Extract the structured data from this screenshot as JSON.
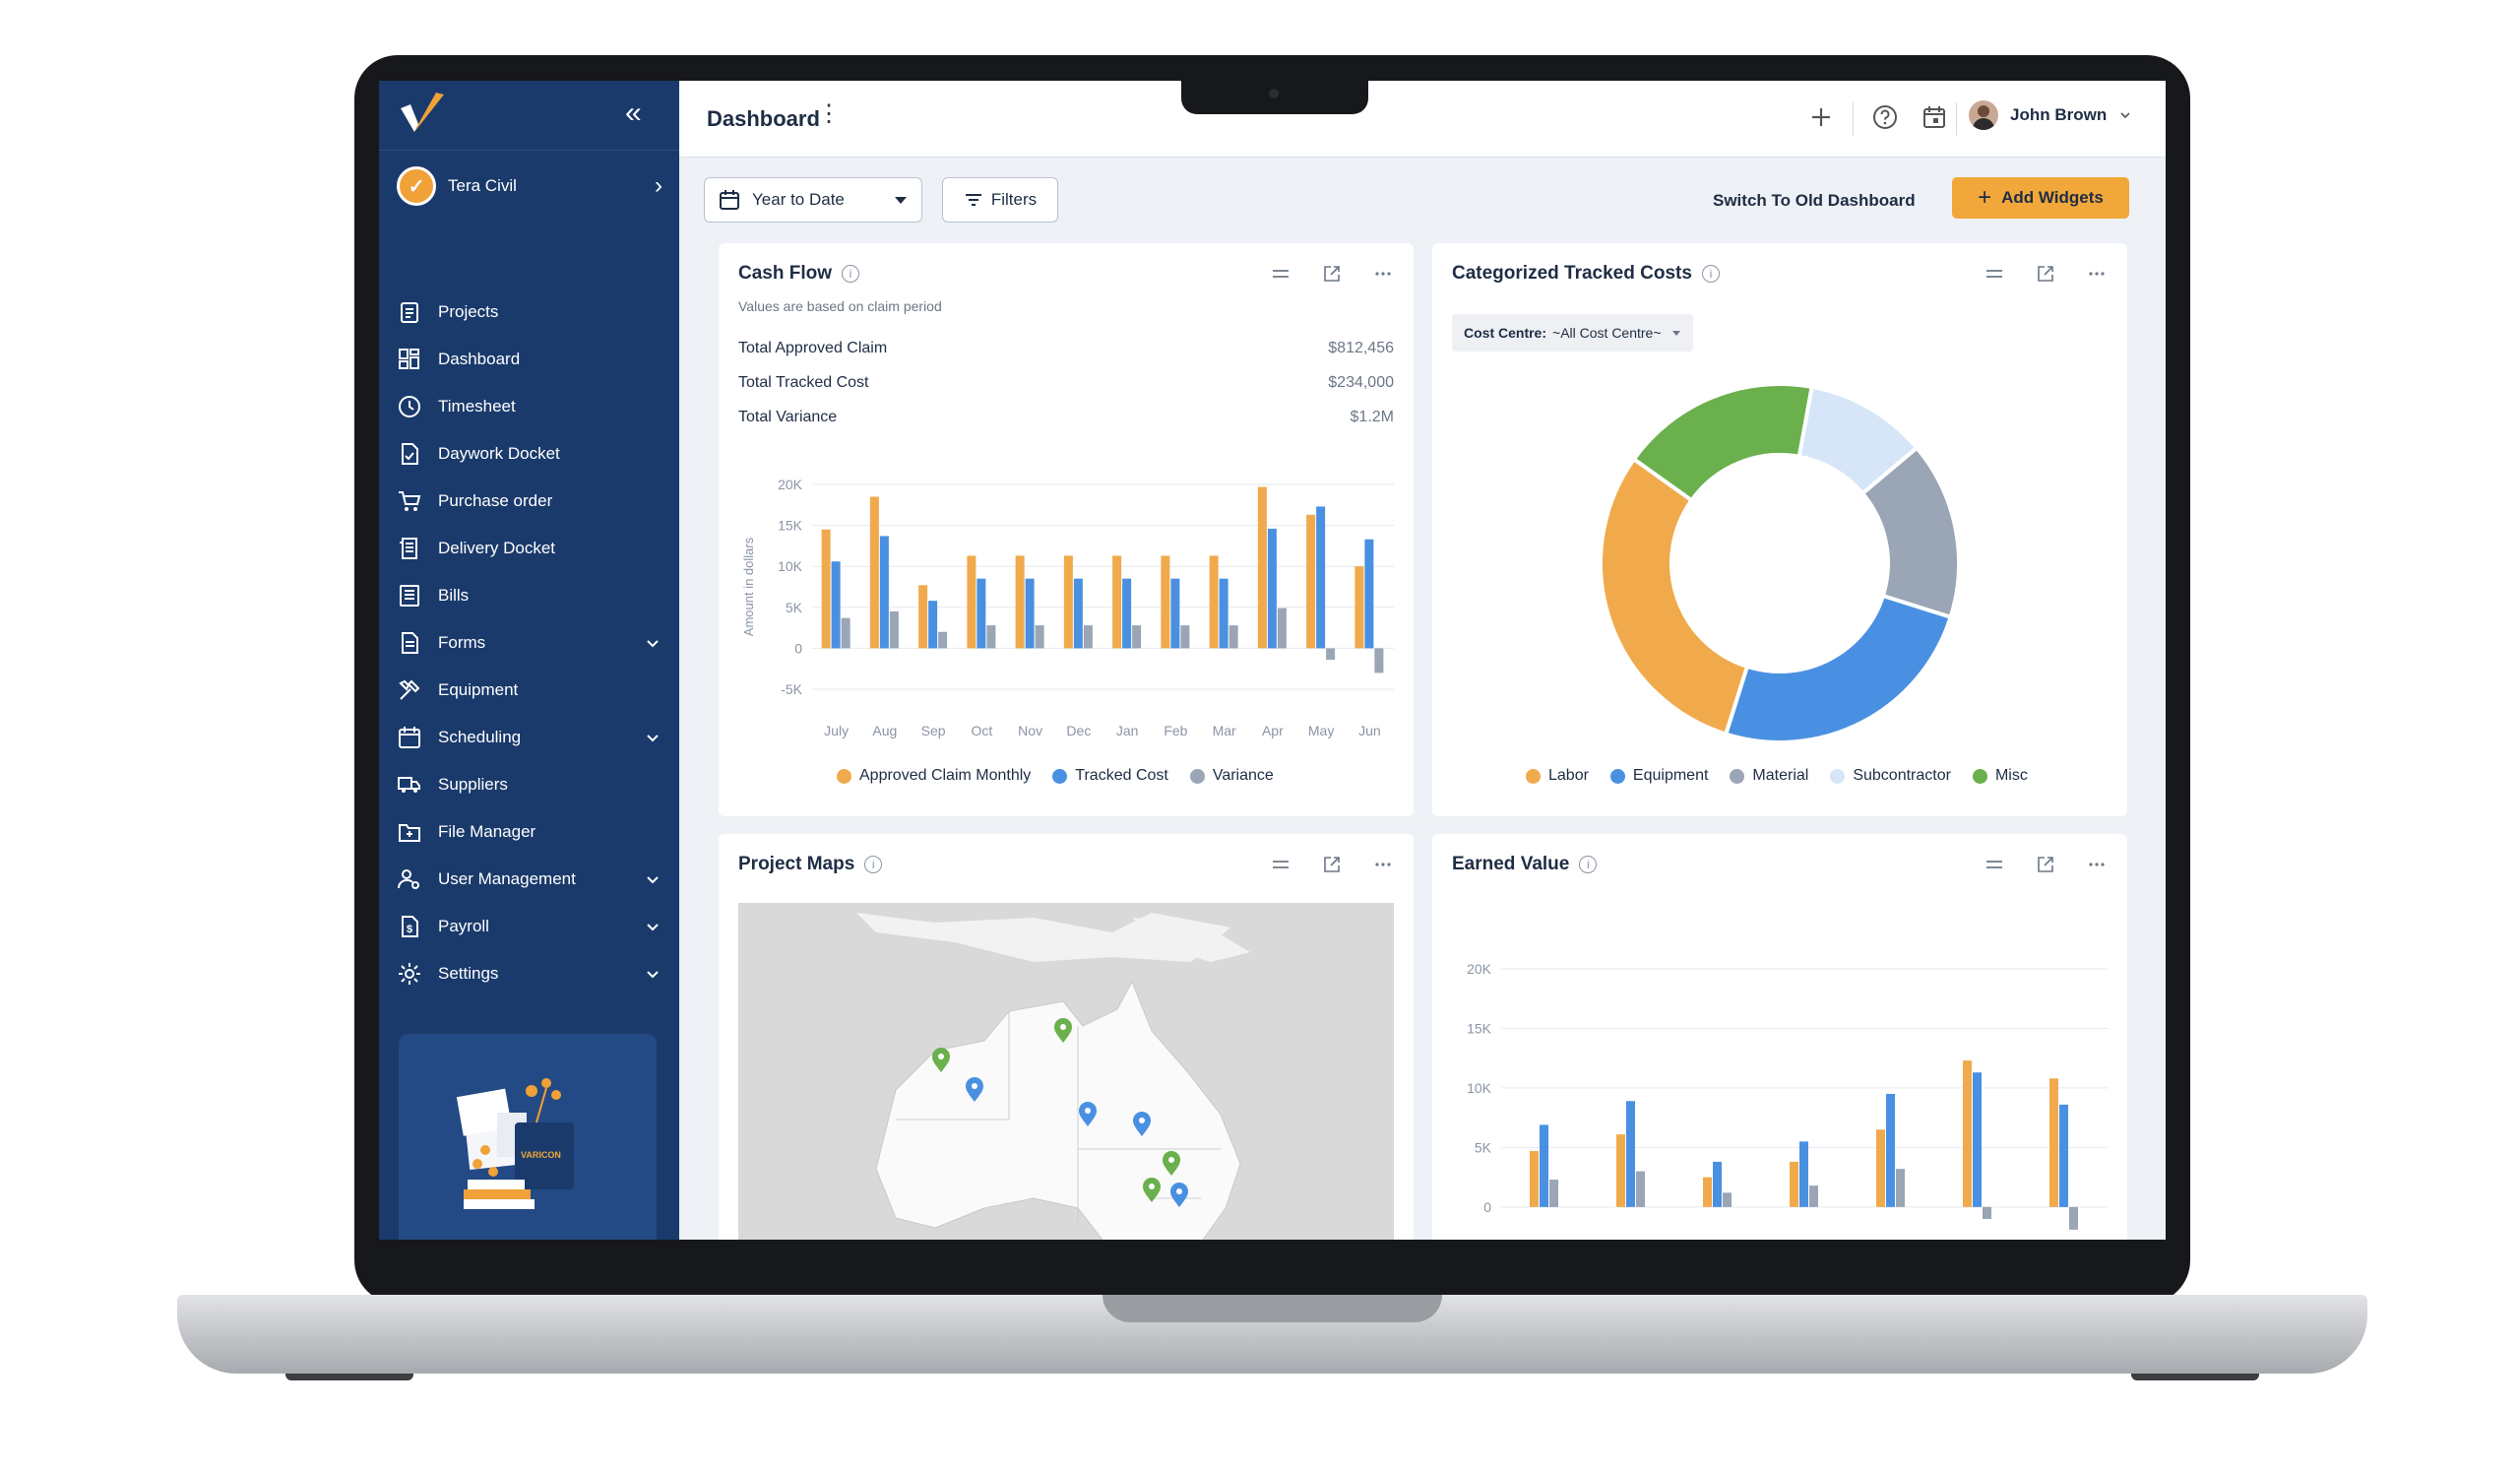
{
  "app": {
    "brand_colors": {
      "sidebar": "#1a3a6b",
      "accent": "#f1a73a",
      "approved": "#f0aa4c",
      "tracked": "#4a90e2",
      "variance": "#9aa5b5"
    }
  },
  "sidebar": {
    "org_name": "Tera Civil",
    "items": [
      {
        "label": "Projects",
        "icon": "clipboard-icon"
      },
      {
        "label": "Dashboard",
        "icon": "dashboard-icon"
      },
      {
        "label": "Timesheet",
        "icon": "clock-icon"
      },
      {
        "label": "Daywork Docket",
        "icon": "file-check-icon"
      },
      {
        "label": "Purchase order",
        "icon": "cart-icon"
      },
      {
        "label": "Delivery Docket",
        "icon": "receipt-icon"
      },
      {
        "label": "Bills",
        "icon": "list-icon"
      },
      {
        "label": "Forms",
        "icon": "document-icon",
        "expandable": true
      },
      {
        "label": "Equipment",
        "icon": "tools-icon"
      },
      {
        "label": "Scheduling",
        "icon": "calendar-icon",
        "expandable": true
      },
      {
        "label": "Suppliers",
        "icon": "truck-icon"
      },
      {
        "label": "File Manager",
        "icon": "folder-icon"
      },
      {
        "label": "User Management",
        "icon": "users-icon",
        "expandable": true
      },
      {
        "label": "Payroll",
        "icon": "dollar-doc-icon",
        "expandable": true
      },
      {
        "label": "Settings",
        "icon": "gear-icon",
        "expandable": true
      }
    ]
  },
  "header": {
    "title": "Dashboard",
    "user_name": "John Brown"
  },
  "toolbar": {
    "period": "Year to Date",
    "filters_label": "Filters",
    "switch_label": "Switch To Old Dashboard",
    "add_widgets_label": "Add Widgets"
  },
  "cash_flow": {
    "title": "Cash Flow",
    "subtitle": "Values are based on claim period",
    "rows": [
      {
        "label": "Total Approved Claim",
        "value": "$812,456"
      },
      {
        "label": "Total Tracked Cost",
        "value": "$234,000"
      },
      {
        "label": "Total Variance",
        "value": "$1.2M"
      }
    ],
    "legend": [
      "Approved Claim Monthly",
      "Tracked Cost",
      "Variance"
    ]
  },
  "tracked_costs": {
    "title": "Categorized Tracked Costs",
    "cost_centre_label": "Cost Centre:",
    "cost_centre_value": "~All Cost Centre~",
    "legend": [
      "Labor",
      "Equipment",
      "Material",
      "Subcontractor",
      "Misc"
    ]
  },
  "project_maps": {
    "title": "Project Maps"
  },
  "earned_value": {
    "title": "Earned Value"
  },
  "chart_data": [
    {
      "type": "bar",
      "title": "Cash Flow",
      "ylabel": "Amount in dollars",
      "categories": [
        "July",
        "Aug",
        "Sep",
        "Oct",
        "Nov",
        "Dec",
        "Jan",
        "Feb",
        "Mar",
        "Apr",
        "May",
        "Jun"
      ],
      "yticks": [
        "20K",
        "15K",
        "10K",
        "5K",
        "0",
        "-5K"
      ],
      "ylim": [
        -5000,
        20000
      ],
      "series": [
        {
          "name": "Approved Claim Monthly",
          "color": "#f0aa4c",
          "values": [
            14500,
            18500,
            7700,
            11300,
            11300,
            11300,
            11300,
            11300,
            11300,
            19700,
            16300,
            10000
          ]
        },
        {
          "name": "Tracked Cost",
          "color": "#4a90e2",
          "values": [
            10600,
            13700,
            5800,
            8500,
            8500,
            8500,
            8500,
            8500,
            8500,
            14600,
            17300,
            13300
          ]
        },
        {
          "name": "Variance",
          "color": "#9aa5b5",
          "values": [
            3700,
            4500,
            2000,
            2800,
            2800,
            2800,
            2800,
            2800,
            2800,
            4900,
            -1400,
            -3000
          ]
        }
      ]
    },
    {
      "type": "pie",
      "title": "Categorized Tracked Costs",
      "categories": [
        "Labor",
        "Equipment",
        "Material",
        "Subcontractor",
        "Misc"
      ],
      "values": [
        30,
        25,
        16,
        11,
        18
      ],
      "colors": [
        "#f0aa4c",
        "#4a90e2",
        "#9aa5b5",
        "#d6e6f8",
        "#6ab04c"
      ]
    },
    {
      "type": "bar",
      "title": "Earned Value",
      "categories": [
        "",
        "",
        "",
        "",
        "",
        "",
        ""
      ],
      "yticks": [
        "20K",
        "15K",
        "10K",
        "5K",
        "0"
      ],
      "ylim": [
        -1500,
        20000
      ],
      "series": [
        {
          "color": "#f0aa4c",
          "values": [
            4700,
            6100,
            2500,
            3800,
            6500,
            12300,
            10800
          ]
        },
        {
          "color": "#4a90e2",
          "values": [
            6900,
            8900,
            3800,
            5500,
            9500,
            11300,
            8600
          ]
        },
        {
          "color": "#9aa5b5",
          "values": [
            2300,
            3000,
            1200,
            1800,
            3200,
            -1000,
            -1900
          ]
        }
      ]
    }
  ]
}
